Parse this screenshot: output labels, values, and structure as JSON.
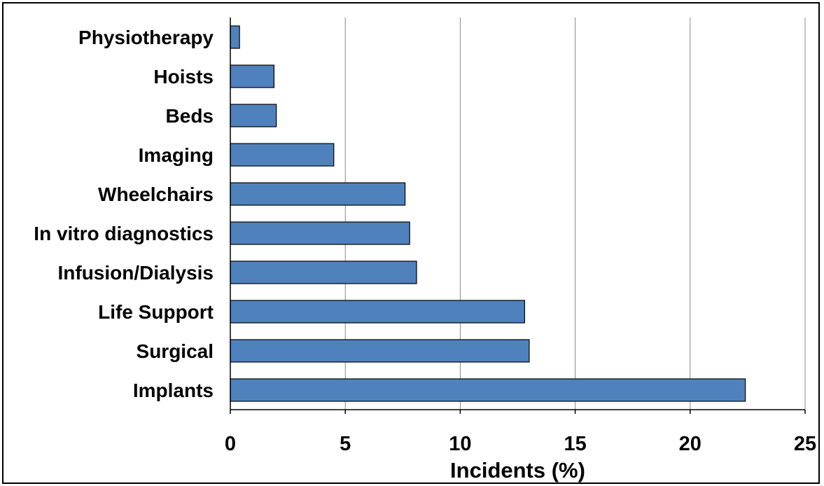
{
  "chart_data": {
    "type": "bar",
    "orientation": "horizontal",
    "categories": [
      "Implants",
      "Surgical",
      "Life Support",
      "Infusion/Dialysis",
      "In vitro diagnostics",
      "Wheelchairs",
      "Imaging",
      "Beds",
      "Hoists",
      "Physiotherapy"
    ],
    "values": [
      22.4,
      13.0,
      12.8,
      8.1,
      7.8,
      7.6,
      4.5,
      2.0,
      1.9,
      0.4
    ],
    "title": "",
    "xlabel": "Incidents (%)",
    "ylabel": "",
    "xlim": [
      0,
      25
    ],
    "xticks": [
      0,
      5,
      10,
      15,
      20,
      25
    ],
    "grid": "vertical",
    "legend": "none",
    "bar_color": "#4f81bd"
  }
}
